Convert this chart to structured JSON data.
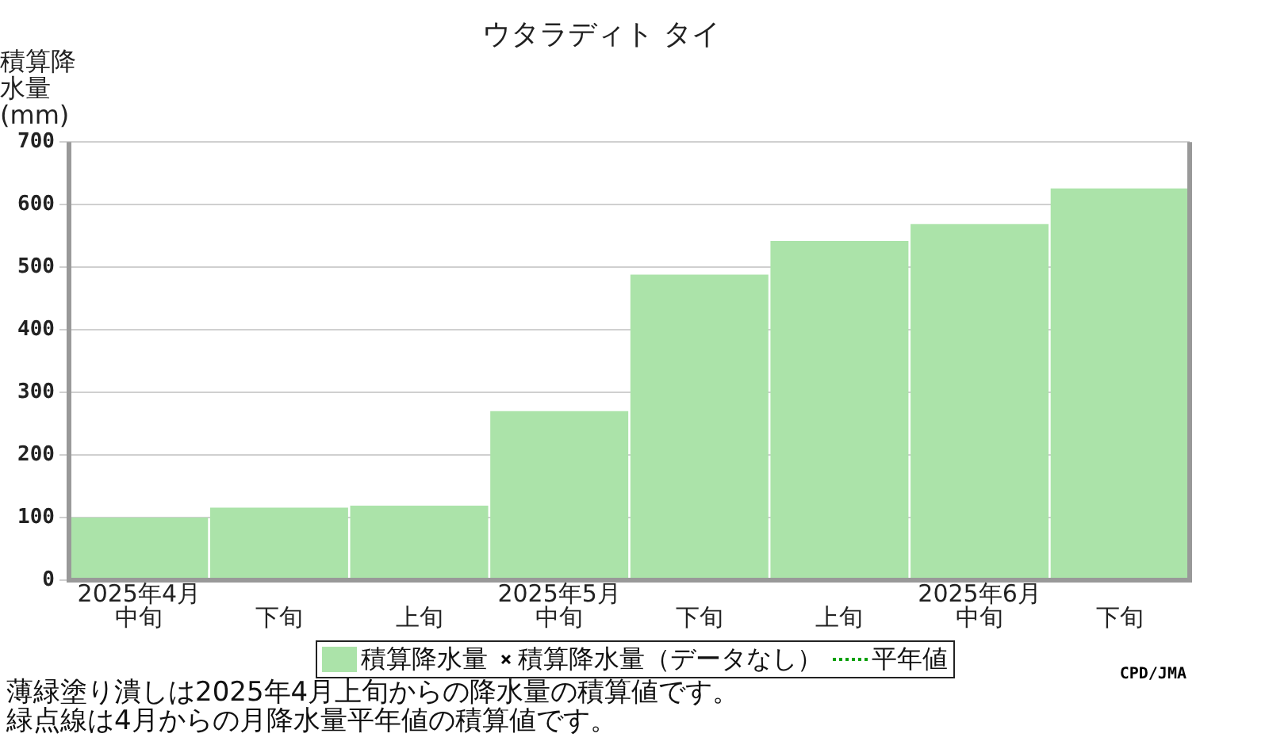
{
  "chart_data": {
    "type": "bar",
    "title": "ウタラディト タイ",
    "ylabel": "積算降水量(mm)",
    "categories": [
      "2025年4月中旬",
      "下旬",
      "上旬",
      "2025年5月中旬",
      "下旬",
      "上旬",
      "2025年6月中旬",
      "下旬"
    ],
    "series": [
      {
        "name": "積算降水量",
        "color": "#abe3a9",
        "values": [
          100,
          116,
          119,
          270,
          488,
          542,
          569,
          626
        ]
      },
      {
        "name": "積算降水量（データなし）",
        "type": "scatter",
        "marker": "cross",
        "color": "#000000",
        "values": [
          null,
          null,
          null,
          null,
          null,
          null,
          null,
          null
        ]
      },
      {
        "name": "平年値",
        "type": "line",
        "line_style": "dotted",
        "color": "#00a000",
        "values": [
          null,
          null,
          null,
          null,
          null,
          null,
          null,
          null
        ]
      }
    ],
    "ylim": [
      0,
      700
    ],
    "yticks": [
      0,
      100,
      200,
      300,
      400,
      500,
      600,
      700
    ],
    "grid": "y",
    "legend": "bottom",
    "annotations": [
      "CPD/JMA",
      "薄緑塗り潰しは2025年4月上旬からの降水量の積算値です。",
      "緑点線は4月からの月降水量平年値の積算値です。"
    ]
  }
}
